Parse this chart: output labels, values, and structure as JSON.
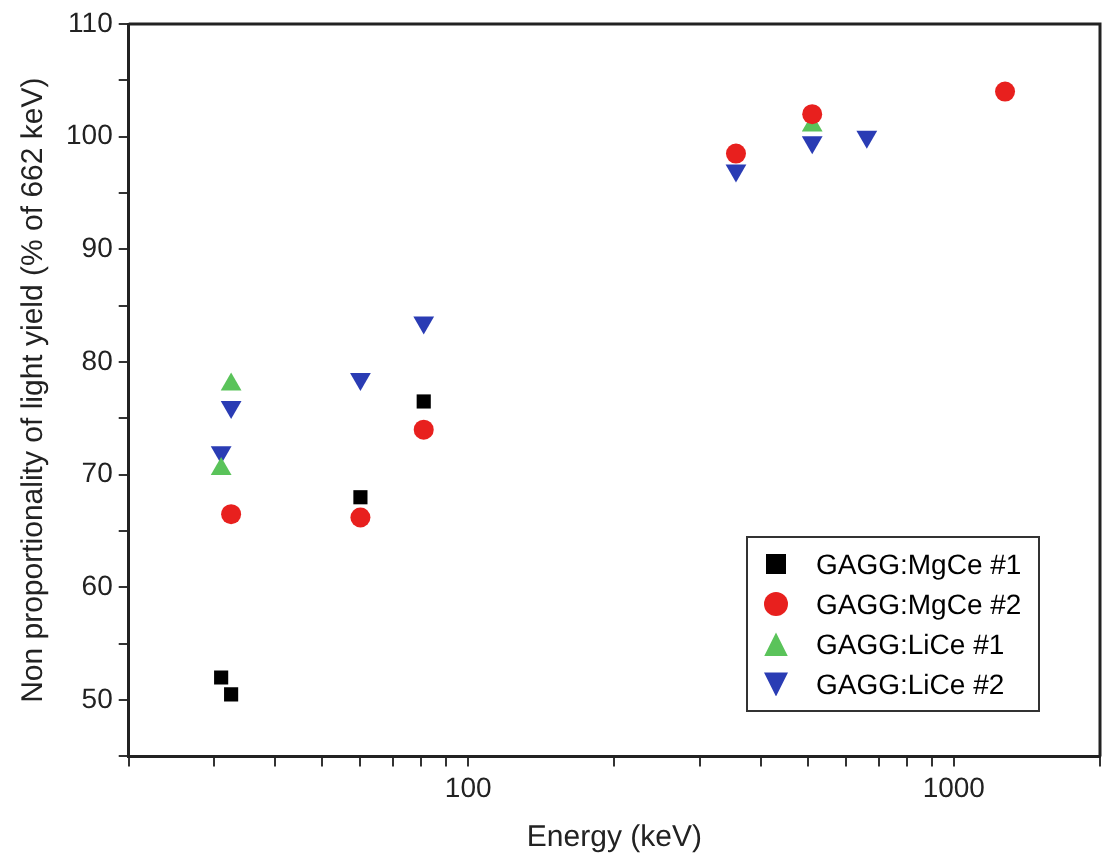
{
  "chart_data": {
    "type": "scatter",
    "xlabel": "Energy (keV)",
    "ylabel": "Non proportionality of light yield (% of 662 keV)",
    "log": "x",
    "xlim": [
      20,
      2000
    ],
    "ylim": [
      45,
      110
    ],
    "xticks": [
      {
        "value": 20,
        "label": null
      },
      {
        "value": 30,
        "label": null
      },
      {
        "value": 40,
        "label": null
      },
      {
        "value": 50,
        "label": null
      },
      {
        "value": 60,
        "label": null
      },
      {
        "value": 70,
        "label": null
      },
      {
        "value": 80,
        "label": null
      },
      {
        "value": 90,
        "label": null
      },
      100,
      {
        "value": 200,
        "label": null
      },
      {
        "value": 300,
        "label": null
      },
      {
        "value": 400,
        "label": null
      },
      {
        "value": 500,
        "label": null
      },
      {
        "value": 600,
        "label": null
      },
      {
        "value": 700,
        "label": null
      },
      {
        "value": 800,
        "label": null
      },
      {
        "value": 900,
        "label": null
      },
      1000,
      {
        "value": 2000,
        "label": null
      }
    ],
    "yticks": [
      {
        "value": 45,
        "label": null
      },
      50,
      {
        "value": 55,
        "label": null
      },
      60,
      {
        "value": 65,
        "label": null
      },
      70,
      {
        "value": 75,
        "label": null
      },
      80,
      {
        "value": 85,
        "label": null
      },
      90,
      {
        "value": 95,
        "label": null
      },
      100,
      {
        "value": 105,
        "label": null
      },
      110
    ],
    "grid": false,
    "legend": "bottom right",
    "series": [
      {
        "name": "GAGG:MgCe #1",
        "color": "#000000",
        "marker": "square",
        "x": [
          31,
          32.5,
          60,
          81
        ],
        "values": [
          52,
          50.5,
          68,
          76.5
        ]
      },
      {
        "name": "GAGG:MgCe #2",
        "color": "#e8201e",
        "marker": "circle",
        "x": [
          32.5,
          60,
          81,
          356,
          511,
          1275
        ],
        "values": [
          66.5,
          66.2,
          74,
          98.5,
          102,
          104
        ]
      },
      {
        "name": "GAGG:LiCe #1",
        "color": "#5ac35a",
        "marker": "triangle",
        "x": [
          32.5,
          31,
          356,
          511
        ],
        "values": [
          78,
          70.5,
          null,
          101
        ]
      },
      {
        "name": "GAGG:LiCe #2",
        "color": "#2a3cb4",
        "marker": "triangle-down",
        "x": [
          32.5,
          31,
          60,
          81,
          356,
          511,
          662
        ],
        "values": [
          76,
          72,
          78.5,
          83.5,
          97,
          99.5,
          100
        ]
      }
    ]
  }
}
